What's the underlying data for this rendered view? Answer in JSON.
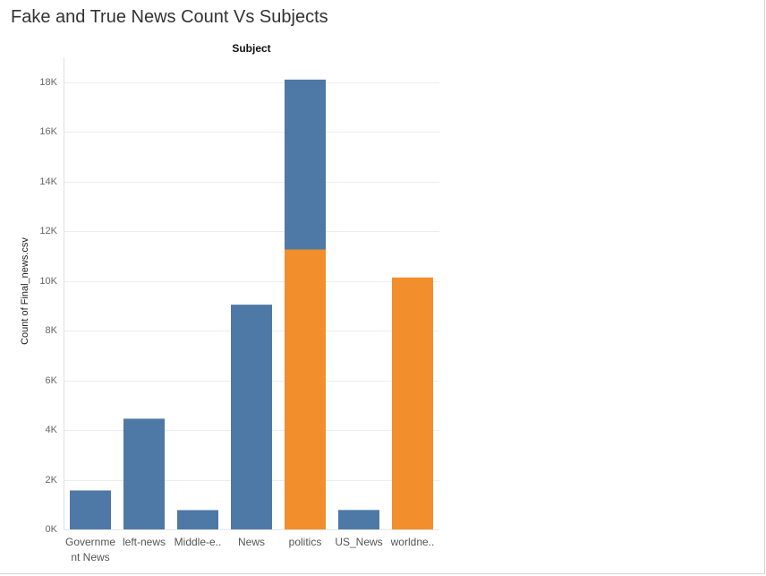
{
  "chart_data": {
    "type": "bar",
    "stacked": true,
    "title": "Fake and True News Count Vs Subjects",
    "column_header": "Subject",
    "ylabel": "Count of Final_news.csv",
    "xlabel": "",
    "ylim": [
      0,
      18500
    ],
    "y_ticks": [
      0,
      2000,
      4000,
      6000,
      8000,
      10000,
      12000,
      14000,
      16000,
      18000
    ],
    "y_tick_labels": [
      "0K",
      "2K",
      "4K",
      "6K",
      "8K",
      "10K",
      "12K",
      "14K",
      "16K",
      "18K"
    ],
    "grid": true,
    "categories": [
      "Government News",
      "left-news",
      "Middle-east",
      "News",
      "politics",
      "US_News",
      "worldnews"
    ],
    "category_labels": [
      "Governme\nnt News",
      "left-news",
      "Middle-e..",
      "News",
      "politics",
      "US_News",
      "worldne.."
    ],
    "series": [
      {
        "color": "#f28e2b",
        "values": [
          0,
          0,
          0,
          0,
          11272,
          0,
          10145
        ]
      },
      {
        "color": "#4e79a7",
        "values": [
          1570,
          4459,
          778,
          9050,
          6841,
          783,
          0
        ]
      }
    ]
  }
}
